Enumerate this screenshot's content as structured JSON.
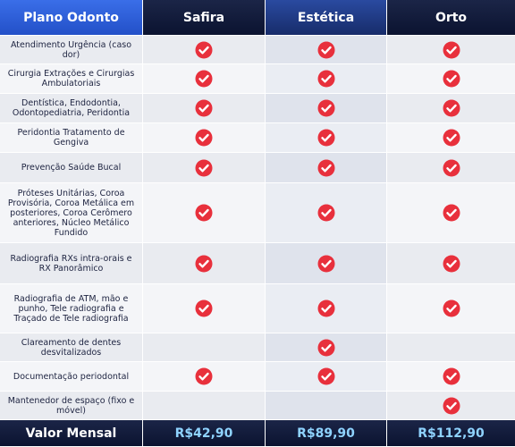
{
  "header": {
    "columns": [
      "Plano Odonto",
      "Safira",
      "Estética",
      "Orto"
    ]
  },
  "rows": [
    {
      "label": "Atendimento Urgência (caso dor)",
      "checks": [
        true,
        true,
        true
      ]
    },
    {
      "label": "Cirurgia Extrações e Cirurgias Ambulatoriais",
      "checks": [
        true,
        true,
        true
      ]
    },
    {
      "label": "Dentística, Endodontia, Odontopediatria, Peridontia",
      "checks": [
        true,
        true,
        true
      ]
    },
    {
      "label": "Peridontia Tratamento de Gengiva",
      "checks": [
        true,
        true,
        true
      ]
    },
    {
      "label": "Prevenção Saúde Bucal",
      "checks": [
        true,
        true,
        true
      ]
    },
    {
      "label": "Próteses Unitárias, Coroa Provisória, Coroa Metálica em posteriores, Coroa Cerômero anteriores, Núcleo Metálico Fundido",
      "checks": [
        true,
        true,
        true
      ]
    },
    {
      "label": "Radiografia RXs intra-orais e RX Panorâmico",
      "checks": [
        true,
        true,
        true
      ]
    },
    {
      "label": "Radiografia de ATM, mão e punho, Tele radiografia e Traçado de Tele radiografia",
      "checks": [
        true,
        true,
        true
      ]
    },
    {
      "label": "Clareamento de dentes desvitalizados",
      "checks": [
        false,
        true,
        false
      ]
    },
    {
      "label": "Documentação periodontal",
      "checks": [
        true,
        true,
        true
      ]
    },
    {
      "label": "Mantenedor de espaço (fixo e móvel)",
      "checks": [
        false,
        false,
        true
      ]
    }
  ],
  "footer": {
    "label": "Valor Mensal",
    "prices": [
      "R$42,90",
      "R$89,90",
      "R$112,90"
    ]
  }
}
